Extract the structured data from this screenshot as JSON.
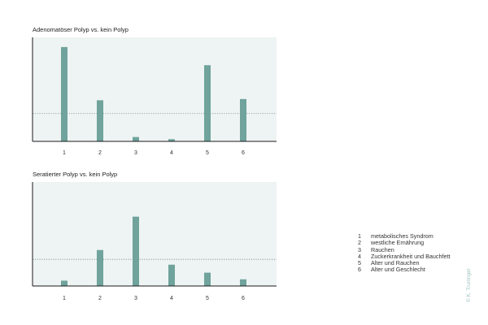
{
  "chart_data": [
    {
      "type": "bar",
      "title": "Adenomatöser Polyp vs. kein Polyp",
      "categories": [
        "1",
        "2",
        "3",
        "4",
        "5",
        "6"
      ],
      "values": [
        3.9,
        1.7,
        0.18,
        0.09,
        3.15,
        1.75
      ],
      "reference_line": 1.15,
      "ylim": [
        0,
        4.3
      ],
      "grid": false,
      "colors": {
        "bar": "#6fa39c",
        "background": "#eef4f3",
        "reference_line": "#7a8a88"
      }
    },
    {
      "type": "bar",
      "title": "Seratierter Polyp vs. kein Polyp",
      "categories": [
        "1",
        "2",
        "3",
        "4",
        "5",
        "6"
      ],
      "values": [
        0.2,
        1.35,
        2.6,
        0.8,
        0.5,
        0.25
      ],
      "reference_line": 1.0,
      "ylim": [
        0,
        3.9
      ],
      "grid": false,
      "colors": {
        "bar": "#6fa39c",
        "background": "#eef4f3",
        "reference_line": "#7a8a88"
      }
    }
  ],
  "legend": [
    {
      "num": "1",
      "text": "metabolisches Syndrom"
    },
    {
      "num": "2",
      "text": "westliche Ernährung"
    },
    {
      "num": "3",
      "text": "Rauchen"
    },
    {
      "num": "4",
      "text": "Zuckerkrankheit und Bauchfett"
    },
    {
      "num": "5",
      "text": "Alter und Rauchen"
    },
    {
      "num": "6",
      "text": "Alter und Geschlecht"
    }
  ],
  "credit": "© K. Truninger"
}
